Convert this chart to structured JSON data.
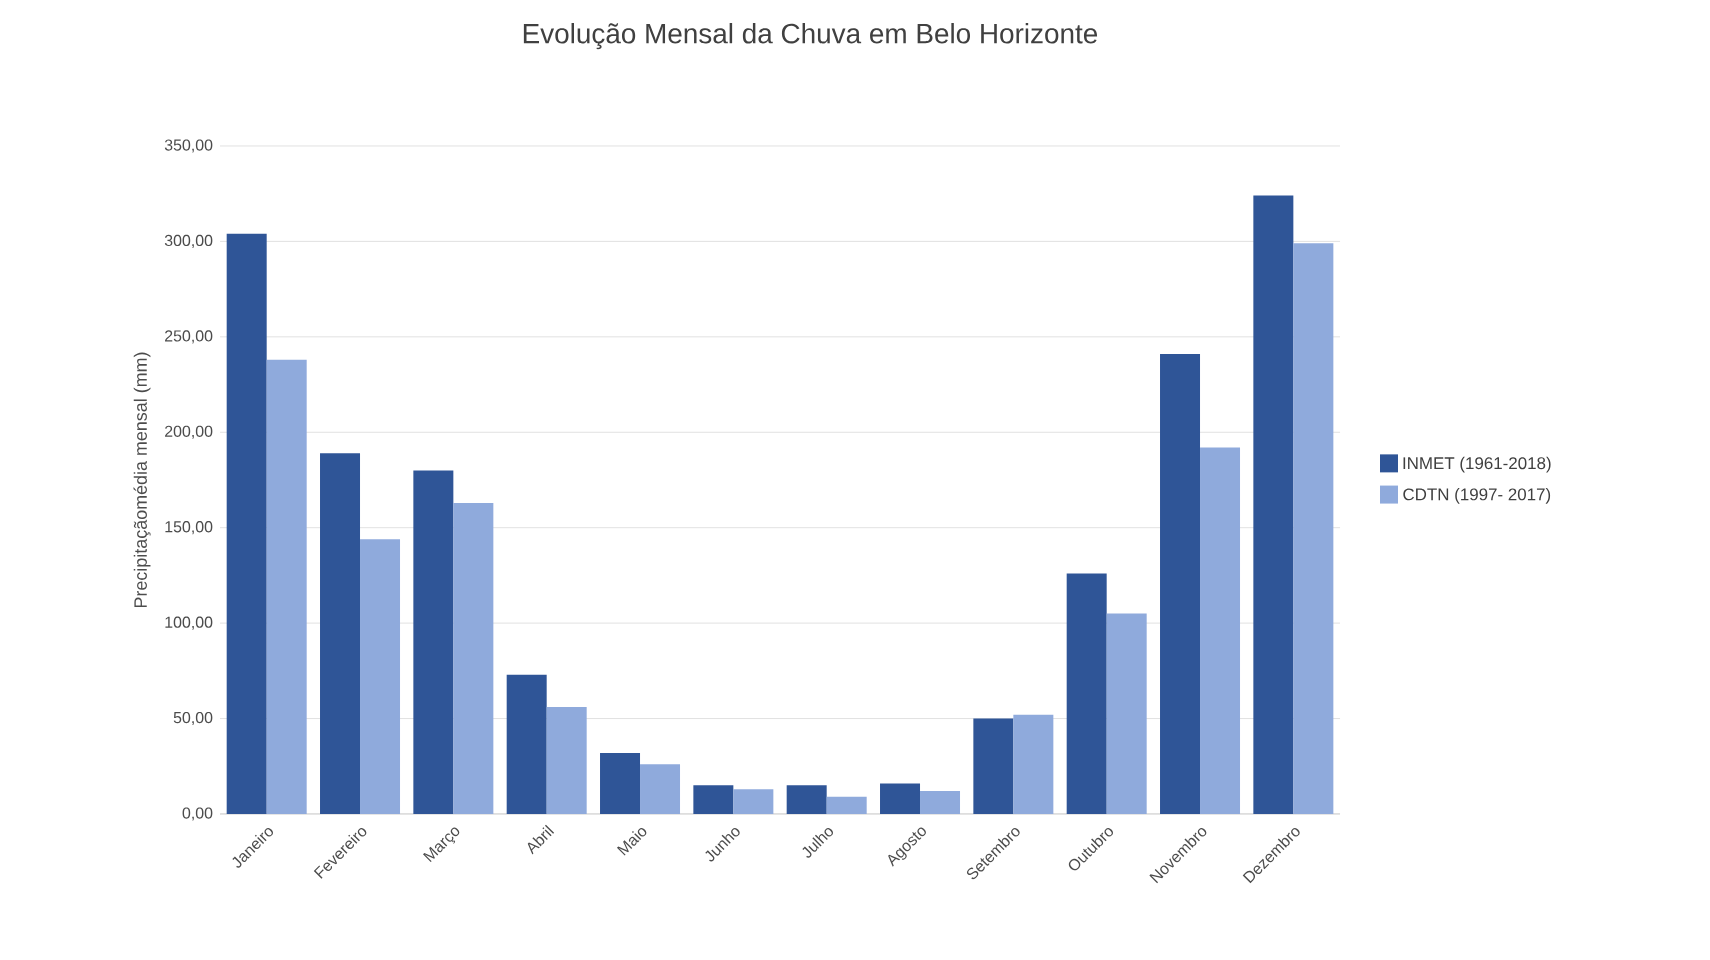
{
  "chart_data": {
    "type": "bar",
    "title": "Evolução Mensal da Chuva em Belo Horizonte",
    "ylabel": "Precipitaçãomédia mensal (mm)",
    "categories": [
      "Janeiro",
      "Fevereiro",
      "Março",
      "Abril",
      "Maio",
      "Junho",
      "Julho",
      "Agosto",
      "Setembro",
      "Outubro",
      "Novembro",
      "Dezembro"
    ],
    "series": [
      {
        "name": "INMET (1961-2018)",
        "color": "#2f5597",
        "values": [
          304,
          189,
          180,
          73,
          32,
          15,
          15,
          16,
          50,
          126,
          241,
          324
        ]
      },
      {
        "name": "CDTN (1997- 2017)",
        "color": "#8faadc",
        "values": [
          238,
          144,
          163,
          56,
          26,
          13,
          9,
          12,
          52,
          105,
          192,
          299
        ]
      }
    ],
    "ylim": [
      0,
      350
    ],
    "yticks": [
      {
        "value": 0,
        "label": "0,00"
      },
      {
        "value": 50,
        "label": "50,00"
      },
      {
        "value": 100,
        "label": "100,00"
      },
      {
        "value": 150,
        "label": "150,00"
      },
      {
        "value": 200,
        "label": "200,00"
      },
      {
        "value": 250,
        "label": "250,00"
      },
      {
        "value": 300,
        "label": "300,00"
      },
      {
        "value": 350,
        "label": "350,00"
      }
    ],
    "grid": "y",
    "legend": "right"
  }
}
